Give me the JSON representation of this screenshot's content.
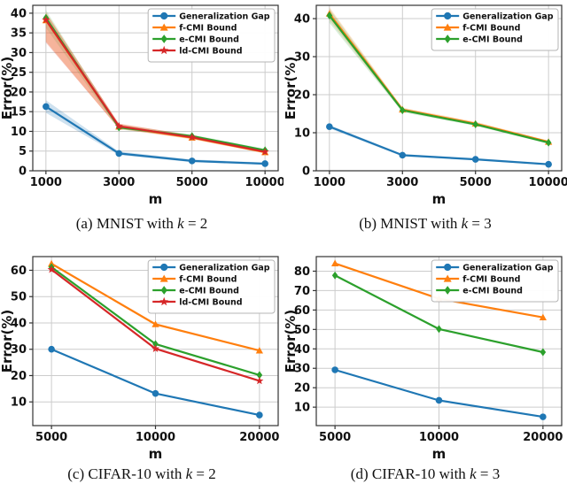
{
  "figure": {
    "background": "#ffffff",
    "grid_color": "#cccccc",
    "spine_color": "#333333",
    "text_color": "#111111",
    "legend_border_color": "#b5b5b5"
  },
  "chart_data": [
    {
      "id": "a",
      "type": "line",
      "caption": {
        "text": "(a) MNIST with",
        "var": "k",
        "eq": "= 2"
      },
      "xlabel": "m",
      "ylabel": "Error(%)",
      "x_ticklabels": [
        "1000",
        "3000",
        "5000",
        "10000"
      ],
      "yticks": [
        0,
        5,
        10,
        15,
        20,
        25,
        30,
        35,
        40
      ],
      "ylim": [
        0,
        42
      ],
      "grid": true,
      "legend_position": "top-right",
      "series": [
        {
          "name": "Generalization Gap",
          "color": "#1f77b4",
          "marker": "circle",
          "values": [
            16.3,
            4.4,
            2.5,
            1.8
          ],
          "band_lower": [
            14.7,
            4.0,
            2.2,
            1.5
          ],
          "band_upper": [
            17.9,
            4.9,
            2.9,
            2.1
          ],
          "band_alpha": 0.22
        },
        {
          "name": "f-CMI Bound",
          "color": "#ff7f0e",
          "marker": "triangle",
          "values": [
            38.2,
            11.2,
            8.4,
            4.7
          ],
          "band_lower": [
            32.8,
            10.6,
            8.0,
            4.4
          ],
          "band_upper": [
            40.3,
            11.9,
            9.0,
            5.1
          ],
          "band_alpha": 0.28
        },
        {
          "name": "e-CMI Bound",
          "color": "#2ca02c",
          "marker": "diamond",
          "values": [
            38.8,
            11.0,
            8.8,
            5.2
          ],
          "band_lower": [
            36.3,
            10.5,
            8.4,
            4.9
          ],
          "band_upper": [
            40.8,
            11.6,
            9.2,
            5.6
          ],
          "band_alpha": 0.15
        },
        {
          "name": "ld-CMI Bound",
          "color": "#d62728",
          "marker": "star",
          "values": [
            38.3,
            11.3,
            8.5,
            4.8
          ],
          "band_lower": [
            32.5,
            10.7,
            8.1,
            4.5
          ],
          "band_upper": [
            40.0,
            12.0,
            9.0,
            5.2
          ],
          "band_alpha": 0.22
        }
      ]
    },
    {
      "id": "b",
      "type": "line",
      "caption": {
        "text": "(b) MNIST with",
        "var": "k",
        "eq": "= 3"
      },
      "xlabel": "m",
      "ylabel": "Error(%)",
      "x_ticklabels": [
        "1000",
        "3000",
        "5000",
        "10000"
      ],
      "yticks": [
        0,
        10,
        20,
        30,
        40
      ],
      "ylim": [
        0,
        43.5
      ],
      "grid": true,
      "legend_position": "top-right",
      "series": [
        {
          "name": "Generalization Gap",
          "color": "#1f77b4",
          "marker": "circle",
          "values": [
            11.6,
            4.1,
            3.0,
            1.7
          ],
          "band_lower": [
            11.1,
            3.8,
            2.8,
            1.5
          ],
          "band_upper": [
            12.1,
            4.4,
            3.3,
            2.0
          ],
          "band_alpha": 0.18
        },
        {
          "name": "f-CMI Bound",
          "color": "#ff7f0e",
          "marker": "triangle",
          "values": [
            41.3,
            16.1,
            12.4,
            7.6
          ],
          "band_lower": [
            39.6,
            15.6,
            12.0,
            7.3
          ],
          "band_upper": [
            43.0,
            16.6,
            12.9,
            7.9
          ],
          "band_alpha": 0.2
        },
        {
          "name": "e-CMI Bound",
          "color": "#2ca02c",
          "marker": "diamond",
          "values": [
            40.8,
            15.9,
            12.2,
            7.4
          ],
          "band_lower": [
            38.9,
            15.4,
            11.8,
            7.1
          ],
          "band_upper": [
            42.6,
            16.4,
            12.6,
            7.7
          ],
          "band_alpha": 0.18
        }
      ]
    },
    {
      "id": "c",
      "type": "line",
      "caption": {
        "text": "(c) CIFAR-10 with",
        "var": "k",
        "eq": "= 2"
      },
      "xlabel": "m",
      "ylabel": "Error(%)",
      "x_ticklabels": [
        "5000",
        "10000",
        "20000"
      ],
      "yticks": [
        10,
        20,
        30,
        40,
        50,
        60
      ],
      "ylim": [
        1,
        65.2
      ],
      "grid": true,
      "legend_position": "top-right",
      "series": [
        {
          "name": "Generalization Gap",
          "color": "#1f77b4",
          "marker": "circle",
          "values": [
            30.0,
            13.2,
            5.0
          ]
        },
        {
          "name": "f-CMI Bound",
          "color": "#ff7f0e",
          "marker": "triangle",
          "values": [
            62.5,
            39.5,
            29.5
          ]
        },
        {
          "name": "e-CMI Bound",
          "color": "#2ca02c",
          "marker": "diamond",
          "values": [
            61.2,
            32.0,
            20.2
          ]
        },
        {
          "name": "ld-CMI Bound",
          "color": "#d62728",
          "marker": "star",
          "values": [
            60.3,
            30.2,
            18.0
          ]
        }
      ]
    },
    {
      "id": "d",
      "type": "line",
      "caption": {
        "text": "(d) CIFAR-10 with",
        "var": "k",
        "eq": "= 3"
      },
      "xlabel": "m",
      "ylabel": "Error(%)",
      "x_ticklabels": [
        "5000",
        "10000",
        "20000"
      ],
      "yticks": [
        10,
        20,
        30,
        40,
        50,
        60,
        70,
        80
      ],
      "ylim": [
        0.5,
        87.5
      ],
      "grid": true,
      "legend_position": "top-right",
      "series": [
        {
          "name": "Generalization Gap",
          "color": "#1f77b4",
          "marker": "circle",
          "values": [
            29.2,
            13.5,
            5.0
          ]
        },
        {
          "name": "f-CMI Bound",
          "color": "#ff7f0e",
          "marker": "triangle",
          "values": [
            84.0,
            65.8,
            56.2
          ]
        },
        {
          "name": "e-CMI Bound",
          "color": "#2ca02c",
          "marker": "diamond",
          "values": [
            77.8,
            50.2,
            38.3
          ]
        }
      ]
    }
  ]
}
